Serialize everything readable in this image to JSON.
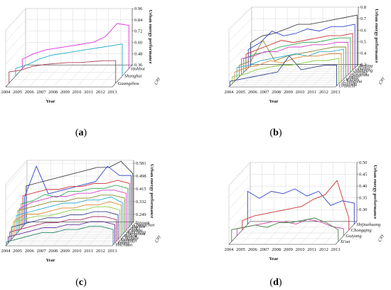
{
  "chart_data": [
    {
      "type": "line",
      "panel_label": "a",
      "xlabel": "Year",
      "ylabel": "Urban energy performance",
      "zlabel": "City",
      "x": [
        "2004",
        "2005",
        "2006",
        "2007",
        "2008",
        "2009",
        "2010",
        "2011",
        "2012",
        "2013"
      ],
      "yticks": [
        "0.36",
        "0.48",
        "0.60",
        "0.72",
        "0.84",
        "0.96"
      ],
      "ylim": [
        0.36,
        0.96
      ],
      "series": [
        {
          "name": "Hohhot",
          "color": "#dd33dd",
          "values": [
            0.46,
            0.52,
            0.56,
            0.58,
            0.6,
            0.62,
            0.64,
            0.7,
            0.84,
            0.82
          ]
        },
        {
          "name": "Shanghai",
          "color": "#22aacc",
          "values": [
            0.44,
            0.48,
            0.54,
            0.58,
            0.6,
            0.62,
            0.64,
            0.66,
            0.68,
            0.7
          ]
        },
        {
          "name": "Guangzhou",
          "color": "#aa4455",
          "values": [
            0.48,
            0.5,
            0.54,
            0.56,
            0.57,
            0.58,
            0.58,
            0.59,
            0.6,
            0.6
          ]
        }
      ]
    },
    {
      "type": "line",
      "panel_label": "b",
      "xlabel": "Year",
      "ylabel": "Urban energy performance",
      "zlabel": "City",
      "x": [
        "2004",
        "2005",
        "2006",
        "2007",
        "2008",
        "2009",
        "2010",
        "2011",
        "2012",
        "2013"
      ],
      "yticks": [
        "0.3",
        "0.4",
        "0.5",
        "0.6",
        "0.7",
        "0.8"
      ],
      "ylim": [
        0.3,
        0.8
      ],
      "series": [
        {
          "name": "Beijing",
          "color": "#444444",
          "values": [
            0.5,
            0.56,
            0.58,
            0.62,
            0.66,
            0.66,
            0.68,
            0.7,
            0.72,
            0.74
          ]
        },
        {
          "name": "Tianjin",
          "color": "#3344cc",
          "values": [
            0.46,
            0.52,
            0.62,
            0.58,
            0.6,
            0.64,
            0.62,
            0.66,
            0.66,
            0.68
          ]
        },
        {
          "name": "Shenyang",
          "color": "#cc3333",
          "values": [
            0.44,
            0.48,
            0.52,
            0.56,
            0.54,
            0.56,
            0.58,
            0.6,
            0.6,
            0.62
          ]
        },
        {
          "name": "Nanjing",
          "color": "#33aa55",
          "values": [
            0.42,
            0.46,
            0.48,
            0.52,
            0.54,
            0.56,
            0.56,
            0.58,
            0.6,
            0.6
          ]
        },
        {
          "name": "Hangzhou",
          "color": "#cc44cc",
          "values": [
            0.44,
            0.46,
            0.5,
            0.5,
            0.54,
            0.54,
            0.56,
            0.56,
            0.58,
            0.58
          ]
        },
        {
          "name": "Jinan",
          "color": "#888833",
          "values": [
            0.4,
            0.44,
            0.62,
            0.44,
            0.48,
            0.5,
            0.52,
            0.54,
            0.56,
            0.56
          ]
        },
        {
          "name": "Wuhan",
          "color": "#33aacc",
          "values": [
            0.4,
            0.42,
            0.46,
            0.48,
            0.5,
            0.52,
            0.5,
            0.54,
            0.54,
            0.56
          ]
        },
        {
          "name": "Changsha",
          "color": "#dd8833",
          "values": [
            0.38,
            0.42,
            0.44,
            0.48,
            0.46,
            0.5,
            0.52,
            0.52,
            0.54,
            0.54
          ]
        },
        {
          "name": "Nanning",
          "color": "#88cc44",
          "values": [
            0.36,
            0.38,
            0.42,
            0.44,
            0.46,
            0.46,
            0.48,
            0.5,
            0.5,
            0.52
          ]
        },
        {
          "name": "Urumchi",
          "color": "#334488",
          "values": [
            0.34,
            0.36,
            0.38,
            0.4,
            0.42,
            0.56,
            0.44,
            0.46,
            0.48,
            0.48
          ]
        }
      ]
    },
    {
      "type": "line",
      "panel_label": "c",
      "xlabel": "Year",
      "ylabel": "Urban energy performance",
      "zlabel": "City",
      "x": [
        "2004",
        "2005",
        "2006",
        "2007",
        "2008",
        "2009",
        "2010",
        "2011",
        "2012",
        "2013"
      ],
      "yticks": [
        "0.249",
        "0.332",
        "0.415",
        "0.498",
        "0.581"
      ],
      "ylim": [
        0.2,
        0.6
      ],
      "series": [
        {
          "name": "Taiyuan",
          "color": "#444444",
          "values": [
            0.44,
            0.46,
            0.48,
            0.5,
            0.52,
            0.54,
            0.56,
            0.56,
            0.6,
            0.52
          ]
        },
        {
          "name": "Changchun",
          "color": "#3344cc",
          "values": [
            0.38,
            0.58,
            0.4,
            0.42,
            0.44,
            0.46,
            0.48,
            0.58,
            0.52,
            0.52
          ]
        },
        {
          "name": "Harbin",
          "color": "#cc3333",
          "values": [
            0.4,
            0.42,
            0.44,
            0.44,
            0.46,
            0.46,
            0.48,
            0.48,
            0.5,
            0.48
          ]
        },
        {
          "name": "Hefei",
          "color": "#33aa55",
          "values": [
            0.36,
            0.38,
            0.42,
            0.4,
            0.44,
            0.44,
            0.46,
            0.46,
            0.48,
            0.46
          ]
        },
        {
          "name": "Fuzhou",
          "color": "#cc44cc",
          "values": [
            0.34,
            0.38,
            0.4,
            0.42,
            0.42,
            0.44,
            0.44,
            0.46,
            0.46,
            0.44
          ]
        },
        {
          "name": "Nanchang",
          "color": "#888833",
          "values": [
            0.34,
            0.36,
            0.38,
            0.4,
            0.4,
            0.42,
            0.42,
            0.44,
            0.44,
            0.42
          ]
        },
        {
          "name": "Zhengzhou",
          "color": "#33aacc",
          "values": [
            0.32,
            0.34,
            0.36,
            0.38,
            0.4,
            0.4,
            0.42,
            0.42,
            0.44,
            0.4
          ]
        },
        {
          "name": "Haikou",
          "color": "#dd8833",
          "values": [
            0.3,
            0.34,
            0.34,
            0.36,
            0.38,
            0.38,
            0.4,
            0.4,
            0.42,
            0.4
          ]
        },
        {
          "name": "Chengdu",
          "color": "#88cc44",
          "values": [
            0.3,
            0.32,
            0.34,
            0.34,
            0.36,
            0.38,
            0.38,
            0.4,
            0.4,
            0.38
          ]
        },
        {
          "name": "Kunming",
          "color": "#334488",
          "values": [
            0.28,
            0.3,
            0.32,
            0.34,
            0.34,
            0.36,
            0.36,
            0.38,
            0.38,
            0.36
          ]
        },
        {
          "name": "Lanzhou",
          "color": "#aa3366",
          "values": [
            0.26,
            0.28,
            0.3,
            0.32,
            0.32,
            0.34,
            0.34,
            0.36,
            0.36,
            0.34
          ]
        },
        {
          "name": "Xining",
          "color": "#6633aa",
          "values": [
            0.24,
            0.26,
            0.28,
            0.3,
            0.3,
            0.32,
            0.32,
            0.34,
            0.34,
            0.32
          ]
        },
        {
          "name": "Yinchuan",
          "color": "#228866",
          "values": [
            0.22,
            0.24,
            0.26,
            0.28,
            0.28,
            0.3,
            0.3,
            0.32,
            0.32,
            0.3
          ]
        }
      ]
    },
    {
      "type": "line",
      "panel_label": "d",
      "xlabel": "Year",
      "ylabel": "Urban energy performance",
      "zlabel": "City",
      "x": [
        "2004",
        "2005",
        "2006",
        "2007",
        "2008",
        "2009",
        "2010",
        "2011",
        "2012",
        "2013"
      ],
      "yticks": [
        "0.30",
        "0.35",
        "0.40",
        "0.45",
        "0.50"
      ],
      "ylim": [
        0.25,
        0.5
      ],
      "series": [
        {
          "name": "Shijiazhuang",
          "color": "#3344cc",
          "values": [
            0.39,
            0.36,
            0.39,
            0.38,
            0.4,
            0.37,
            0.39,
            0.33,
            0.35,
            0.34
          ]
        },
        {
          "name": "Chongqing",
          "color": "#cc3333",
          "values": [
            0.29,
            0.31,
            0.32,
            0.33,
            0.34,
            0.35,
            0.38,
            0.4,
            0.46,
            0.3
          ]
        },
        {
          "name": "Guiyang",
          "color": "#cc44aa",
          "values": [
            0.28,
            0.29,
            0.3,
            0.31,
            0.31,
            0.3,
            0.32,
            0.31,
            0.29,
            0.28
          ]
        },
        {
          "name": "Xi'an",
          "color": "#448844",
          "values": [
            0.3,
            0.31,
            0.32,
            0.31,
            0.33,
            0.33,
            0.34,
            0.35,
            0.33,
            0.3
          ]
        }
      ]
    }
  ]
}
